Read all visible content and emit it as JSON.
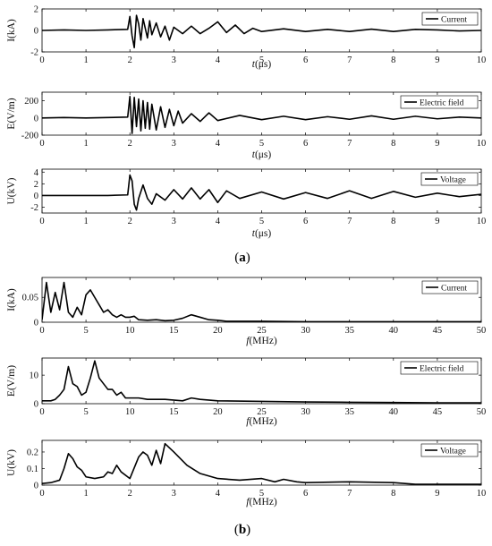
{
  "figure": {
    "label_a": {
      "open": "(",
      "letter": "a",
      "close": ")"
    },
    "label_b": {
      "open": "(",
      "letter": "b",
      "close": ")"
    }
  },
  "chart_data": [
    {
      "type": "line",
      "id": "current-time",
      "xlabel": {
        "var": "t",
        "unit": "(μs)"
      },
      "ylabel": "I(kA)",
      "xlim": [
        0,
        10
      ],
      "ylim": [
        -2,
        2
      ],
      "xticks": [
        "0",
        "1",
        "2",
        "3",
        "4",
        "5",
        "6",
        "7",
        "8",
        "9",
        "10"
      ],
      "yticks": [
        "-2",
        "0",
        "2"
      ],
      "legend": {
        "label": "Current",
        "position": "top-right"
      },
      "grid": false,
      "series": [
        {
          "name": "Current",
          "x": [
            0,
            0.5,
            1,
            1.5,
            1.95,
            2.0,
            2.05,
            2.1,
            2.15,
            2.2,
            2.25,
            2.3,
            2.35,
            2.4,
            2.45,
            2.5,
            2.6,
            2.7,
            2.8,
            2.9,
            3.0,
            3.2,
            3.4,
            3.6,
            3.8,
            4.0,
            4.2,
            4.4,
            4.6,
            4.8,
            5.0,
            5.5,
            6.0,
            6.5,
            7.0,
            7.5,
            8.0,
            8.5,
            9.0,
            9.5,
            10
          ],
          "y": [
            0,
            0.05,
            0,
            0.05,
            0.1,
            1.3,
            -0.5,
            -1.6,
            1.4,
            0.6,
            -0.9,
            1.1,
            0.2,
            -0.7,
            0.9,
            -0.4,
            0.7,
            -0.6,
            0.4,
            -0.9,
            0.3,
            -0.3,
            0.4,
            -0.3,
            0.2,
            0.8,
            -0.2,
            0.5,
            -0.3,
            0.2,
            -0.1,
            0.15,
            -0.1,
            0.1,
            -0.1,
            0.12,
            -0.1,
            0.1,
            0.05,
            -0.05,
            0
          ]
        }
      ]
    },
    {
      "type": "line",
      "id": "efield-time",
      "xlabel": {
        "var": "t",
        "unit": "(μs)"
      },
      "ylabel": "E(V/m)",
      "xlim": [
        0,
        10
      ],
      "ylim": [
        -200,
        300
      ],
      "xticks": [
        "0",
        "1",
        "2",
        "3",
        "4",
        "5",
        "6",
        "7",
        "8",
        "9",
        "10"
      ],
      "yticks": [
        "-200",
        "0",
        "200"
      ],
      "legend": {
        "label": "Electric field",
        "position": "top-right"
      },
      "grid": false,
      "series": [
        {
          "name": "Electric field",
          "x": [
            0,
            0.5,
            1,
            1.5,
            1.95,
            2.0,
            2.05,
            2.1,
            2.15,
            2.2,
            2.25,
            2.3,
            2.35,
            2.4,
            2.45,
            2.5,
            2.6,
            2.7,
            2.8,
            2.9,
            3.0,
            3.1,
            3.2,
            3.4,
            3.6,
            3.8,
            4.0,
            4.5,
            5.0,
            5.5,
            6.0,
            6.5,
            7.0,
            7.5,
            8.0,
            8.5,
            9.0,
            9.5,
            10
          ],
          "y": [
            0,
            5,
            0,
            5,
            10,
            250,
            -180,
            240,
            -100,
            220,
            -150,
            200,
            -120,
            180,
            -130,
            160,
            -140,
            130,
            -110,
            100,
            -90,
            80,
            -60,
            50,
            -40,
            60,
            -30,
            30,
            -20,
            20,
            -20,
            15,
            -15,
            25,
            -15,
            20,
            -10,
            10,
            0
          ]
        }
      ]
    },
    {
      "type": "line",
      "id": "voltage-time",
      "xlabel": {
        "var": "t",
        "unit": "(μs)"
      },
      "ylabel": "U(kV)",
      "xlim": [
        0,
        10
      ],
      "ylim": [
        -3,
        4.5
      ],
      "xticks": [
        "0",
        "1",
        "2",
        "3",
        "4",
        "5",
        "6",
        "7",
        "8",
        "9",
        "10"
      ],
      "yticks": [
        "-2",
        "0",
        "2",
        "4"
      ],
      "legend": {
        "label": "Voltage",
        "position": "top-right"
      },
      "grid": false,
      "series": [
        {
          "name": "Voltage",
          "x": [
            0,
            0.5,
            1,
            1.5,
            1.95,
            2.0,
            2.05,
            2.1,
            2.15,
            2.2,
            2.3,
            2.4,
            2.5,
            2.6,
            2.8,
            3.0,
            3.2,
            3.4,
            3.6,
            3.8,
            4.0,
            4.2,
            4.5,
            5.0,
            5.5,
            6.0,
            6.5,
            7.0,
            7.5,
            8.0,
            8.5,
            9.0,
            9.5,
            10
          ],
          "y": [
            0,
            0,
            0,
            0,
            0.1,
            3.5,
            2.5,
            -1.5,
            -2.5,
            -0.5,
            1.8,
            -0.5,
            -1.5,
            0.3,
            -0.8,
            1.0,
            -0.6,
            1.3,
            -0.6,
            1.0,
            -1.2,
            0.8,
            -0.5,
            0.6,
            -0.6,
            0.5,
            -0.5,
            0.8,
            -0.5,
            0.7,
            -0.3,
            0.4,
            -0.2,
            0.2
          ]
        }
      ]
    },
    {
      "type": "line",
      "id": "current-freq",
      "xlabel": {
        "var": "f",
        "unit": "(MHz)"
      },
      "ylabel": "I(kA)",
      "xlim": [
        0,
        50
      ],
      "ylim": [
        0,
        0.09
      ],
      "xticks": [
        "0",
        "5",
        "10",
        "15",
        "20",
        "25",
        "30",
        "35",
        "40",
        "45",
        "50"
      ],
      "yticks": [
        "0",
        "0.05"
      ],
      "legend": {
        "label": "Current",
        "position": "top-right"
      },
      "grid": false,
      "series": [
        {
          "name": "Current",
          "x": [
            0,
            0.5,
            1,
            1.5,
            2,
            2.5,
            3,
            3.5,
            4,
            4.5,
            5,
            5.5,
            6,
            6.5,
            7,
            7.5,
            8,
            8.5,
            9,
            9.5,
            10,
            10.5,
            11,
            12,
            13,
            14,
            15,
            16,
            17,
            18,
            19,
            20,
            21,
            25,
            30,
            35,
            40,
            45,
            50
          ],
          "y": [
            0.005,
            0.08,
            0.02,
            0.06,
            0.025,
            0.08,
            0.02,
            0.01,
            0.03,
            0.015,
            0.055,
            0.065,
            0.05,
            0.035,
            0.02,
            0.025,
            0.015,
            0.01,
            0.015,
            0.01,
            0.01,
            0.012,
            0.005,
            0.004,
            0.005,
            0.003,
            0.004,
            0.008,
            0.015,
            0.01,
            0.005,
            0.004,
            0.002,
            0.002,
            0.001,
            0.001,
            0.001,
            0.001,
            0.001
          ]
        }
      ]
    },
    {
      "type": "line",
      "id": "efield-freq",
      "xlabel": {
        "var": "f",
        "unit": "(MHz)"
      },
      "ylabel": "E(V/m)",
      "xlim": [
        0,
        50
      ],
      "ylim": [
        0,
        16
      ],
      "xticks": [
        "0",
        "5",
        "10",
        "15",
        "20",
        "25",
        "30",
        "35",
        "40",
        "45",
        "50"
      ],
      "yticks": [
        "0",
        "10"
      ],
      "legend": {
        "label": "Electric field",
        "position": "top-right"
      },
      "grid": false,
      "series": [
        {
          "name": "Electric field",
          "x": [
            0,
            1,
            1.5,
            2,
            2.5,
            3,
            3.5,
            4,
            4.5,
            5,
            5.5,
            6,
            6.5,
            7,
            7.5,
            8,
            8.5,
            9,
            9.5,
            10,
            11,
            12,
            14,
            16,
            17,
            18,
            20,
            25,
            30,
            35,
            40,
            45,
            50
          ],
          "y": [
            1,
            1,
            1.5,
            3,
            5,
            13,
            7,
            6,
            3,
            4,
            9,
            15,
            9,
            7,
            5,
            5,
            3,
            4,
            2,
            2,
            2,
            1.5,
            1.5,
            1,
            2,
            1.5,
            1,
            0.8,
            0.6,
            0.5,
            0.4,
            0.3,
            0.3
          ]
        }
      ]
    },
    {
      "type": "line",
      "id": "voltage-freq",
      "xlabel": {
        "var": "f",
        "unit": "(MHz)"
      },
      "ylabel": "U(kV)",
      "xlim": [
        0,
        10
      ],
      "ylim": [
        0,
        0.27
      ],
      "xticks": [
        "0",
        "1",
        "2",
        "3",
        "4",
        "5",
        "6",
        "7",
        "8",
        "9",
        "10"
      ],
      "yticks": [
        "0",
        "0.1",
        "0.2"
      ],
      "legend": {
        "label": "Voltage",
        "position": "top-right"
      },
      "grid": false,
      "series": [
        {
          "name": "Voltage",
          "x": [
            0,
            0.2,
            0.4,
            0.5,
            0.6,
            0.7,
            0.8,
            0.9,
            1.0,
            1.2,
            1.4,
            1.5,
            1.6,
            1.7,
            1.8,
            2.0,
            2.2,
            2.3,
            2.4,
            2.5,
            2.6,
            2.7,
            2.8,
            3.0,
            3.3,
            3.6,
            4.0,
            4.5,
            5.0,
            5.3,
            5.5,
            5.8,
            6.0,
            7.0,
            8.0,
            8.5,
            9.0,
            10
          ],
          "y": [
            0.01,
            0.015,
            0.03,
            0.1,
            0.19,
            0.16,
            0.11,
            0.09,
            0.05,
            0.04,
            0.05,
            0.08,
            0.07,
            0.12,
            0.08,
            0.04,
            0.17,
            0.2,
            0.18,
            0.12,
            0.21,
            0.13,
            0.25,
            0.2,
            0.12,
            0.07,
            0.04,
            0.03,
            0.04,
            0.02,
            0.035,
            0.02,
            0.015,
            0.02,
            0.015,
            0.005,
            0.005,
            0.005
          ]
        }
      ]
    }
  ]
}
